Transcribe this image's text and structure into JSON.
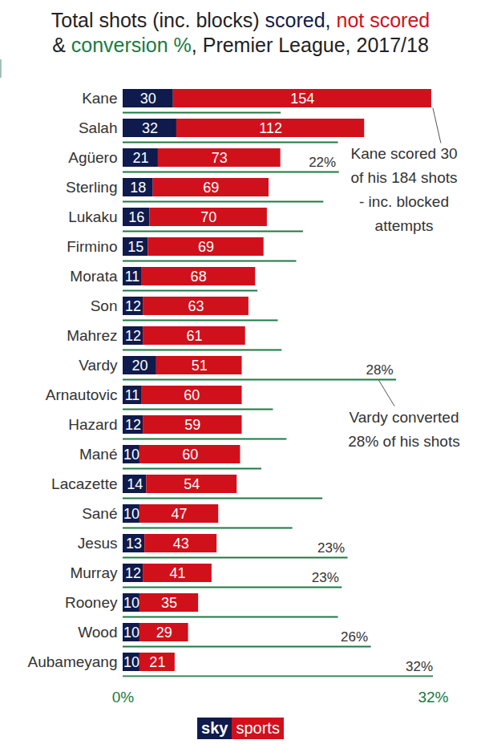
{
  "chart_data": {
    "type": "bar",
    "orientation": "horizontal",
    "stacked": true,
    "data_labels": true,
    "title": "Total shots (inc. blocks) scored, not scored & conversion %, Premier League, 2017/18",
    "caption": "sky sports",
    "categories": [
      "Kane",
      "Salah",
      "Agüero",
      "Sterling",
      "Lukaku",
      "Firmino",
      "Morata",
      "Son",
      "Mahrez",
      "Vardy",
      "Arnautovic",
      "Hazard",
      "Mané",
      "Lacazette",
      "Sané",
      "Jesus",
      "Murray",
      "Rooney",
      "Wood",
      "Aubameyang"
    ],
    "series": [
      {
        "name": "scored",
        "color": "#0f1b4c",
        "values": [
          30,
          32,
          21,
          18,
          16,
          15,
          11,
          12,
          12,
          20,
          11,
          12,
          10,
          14,
          10,
          13,
          12,
          10,
          10,
          10
        ]
      },
      {
        "name": "not scored",
        "color": "#d0111b",
        "values": [
          154,
          112,
          73,
          69,
          70,
          69,
          68,
          63,
          61,
          51,
          60,
          59,
          60,
          54,
          47,
          43,
          41,
          35,
          29,
          21
        ]
      },
      {
        "name": "conversion %",
        "color": "#1a7a43",
        "type": "rule",
        "axis": "x2",
        "values": [
          16.3,
          22.2,
          22.3,
          20.7,
          18.6,
          17.9,
          13.9,
          16.0,
          16.4,
          28.2,
          15.5,
          16.9,
          14.3,
          20.6,
          17.5,
          23.2,
          22.6,
          22.2,
          25.6,
          32.3
        ],
        "value_labels": [
          null,
          null,
          "22%",
          null,
          null,
          null,
          null,
          null,
          null,
          "28%",
          null,
          null,
          null,
          null,
          null,
          "23%",
          "23%",
          null,
          "26%",
          "32%"
        ]
      }
    ],
    "xlim": [
      0,
      185
    ],
    "xticks": [],
    "x2lim": [
      0,
      32
    ],
    "x2ticks": [
      {
        "value": 0,
        "label": "0%"
      },
      {
        "value": 32,
        "label": "32%"
      }
    ],
    "annotations": [
      {
        "category": "Kane",
        "lines": [
          "Kane scored 30",
          "of his 184 shots",
          "- inc. blocked",
          "attempts"
        ]
      },
      {
        "category": "Vardy",
        "lines": [
          "Vardy converted",
          "28% of his shots"
        ]
      }
    ]
  }
}
